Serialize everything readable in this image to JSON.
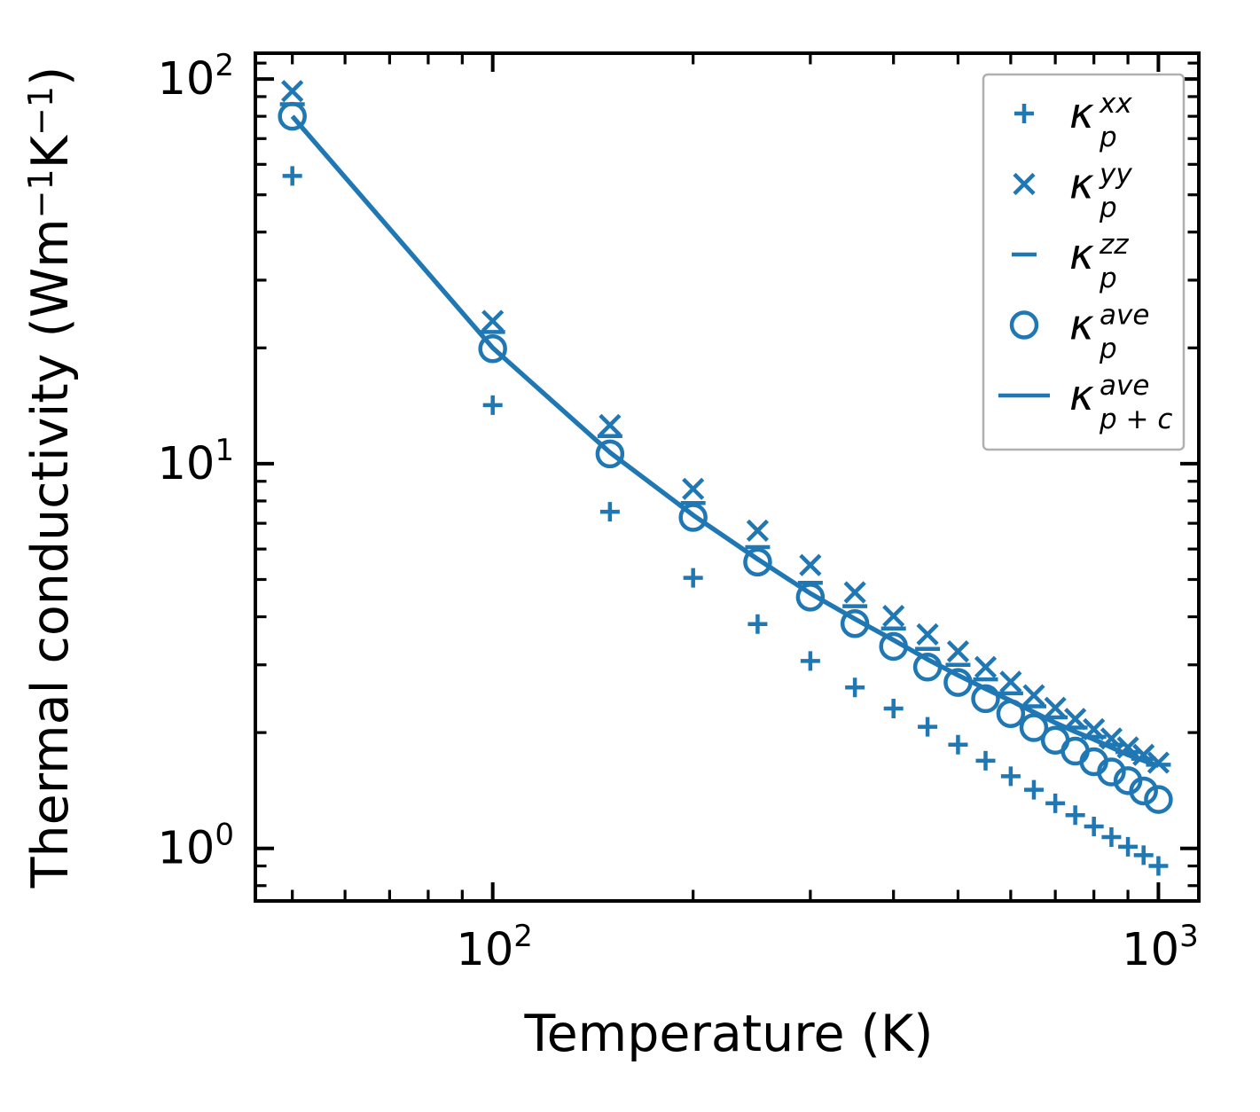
{
  "figure": {
    "xlabel": "Temperature (K)",
    "ylabel_parts": [
      {
        "t": "Thermal conductivity (Wm"
      },
      {
        "t": "−1",
        "sup": true
      },
      {
        "t": "K"
      },
      {
        "t": "−1",
        "sup": true
      },
      {
        "t": ")"
      }
    ],
    "colors": {
      "series": "#1f77b4",
      "axis": "#000000",
      "legend_border": "#b0b0b0",
      "background": "#ffffff"
    }
  },
  "axes": {
    "x": {
      "scale": "log",
      "range": [
        44,
        1150
      ],
      "major": [
        {
          "value": 100,
          "base": "10",
          "exp": "2"
        },
        {
          "value": 1000,
          "base": "10",
          "exp": "3"
        }
      ],
      "minor": [
        50,
        60,
        70,
        80,
        90,
        200,
        300,
        400,
        500,
        600,
        700,
        800,
        900
      ]
    },
    "y": {
      "scale": "log",
      "range": [
        0.73,
        116.7
      ],
      "major": [
        {
          "value": 1,
          "base": "10",
          "exp": "0"
        },
        {
          "value": 10,
          "base": "10",
          "exp": "1"
        },
        {
          "value": 100,
          "base": "10",
          "exp": "2"
        }
      ],
      "minor": [
        0.8,
        0.9,
        2,
        3,
        4,
        5,
        6,
        7,
        8,
        9,
        20,
        30,
        40,
        50,
        60,
        70,
        80,
        90,
        110
      ]
    }
  },
  "chart_data": {
    "type": "scatter",
    "xlabel": "Temperature (K)",
    "ylabel": "Thermal conductivity (Wm-1K-1)",
    "x": [
      50,
      100,
      150,
      200,
      250,
      300,
      350,
      400,
      450,
      500,
      550,
      600,
      650,
      700,
      750,
      800,
      850,
      900,
      950,
      1000
    ],
    "xlim": [
      44,
      1150
    ],
    "ylim": [
      0.73,
      116.7
    ],
    "grid": false,
    "legend_position": "upper right",
    "series": [
      {
        "name": "kappa_p_xx",
        "marker": "plus",
        "values": [
          56,
          14.2,
          7.5,
          5.05,
          3.83,
          3.07,
          2.62,
          2.31,
          2.07,
          1.86,
          1.69,
          1.54,
          1.42,
          1.31,
          1.22,
          1.14,
          1.07,
          1.01,
          0.96,
          0.9
        ]
      },
      {
        "name": "kappa_p_yy",
        "marker": "x",
        "values": [
          93,
          23.5,
          12.6,
          8.6,
          6.7,
          5.45,
          4.63,
          4.02,
          3.6,
          3.25,
          2.96,
          2.71,
          2.5,
          2.32,
          2.17,
          2.04,
          1.93,
          1.83,
          1.75,
          1.67
        ]
      },
      {
        "name": "kappa_p_zz",
        "marker": "hline",
        "values": [
          86,
          22.0,
          11.8,
          7.9,
          6.07,
          4.9,
          4.26,
          3.73,
          3.3,
          3.0,
          2.75,
          2.53,
          2.34,
          2.19,
          2.06,
          1.95,
          1.86,
          1.78,
          1.71,
          1.65
        ]
      },
      {
        "name": "kappa_p_ave",
        "marker": "circle",
        "values": [
          80,
          19.9,
          10.6,
          7.25,
          5.55,
          4.5,
          3.84,
          3.35,
          2.96,
          2.7,
          2.45,
          2.24,
          2.06,
          1.91,
          1.79,
          1.68,
          1.58,
          1.5,
          1.41,
          1.34
        ]
      },
      {
        "name": "kappa_p_plus_c_ave",
        "marker": "line",
        "values": [
          80,
          20.0,
          10.7,
          7.35,
          5.65,
          4.6,
          3.95,
          3.48,
          3.1,
          2.82,
          2.6,
          2.42,
          2.26,
          2.12,
          2.01,
          1.92,
          1.83,
          1.75,
          1.69,
          1.64
        ]
      }
    ]
  },
  "legend": {
    "entries": [
      {
        "marker": "plus",
        "base": "κ",
        "sup": "xx",
        "sub": "p"
      },
      {
        "marker": "x",
        "base": "κ",
        "sup": "yy",
        "sub": "p"
      },
      {
        "marker": "hline",
        "base": "κ",
        "sup": "zz",
        "sub": "p"
      },
      {
        "marker": "circle",
        "base": "κ",
        "sup": "ave",
        "sub": "p"
      },
      {
        "marker": "line",
        "base": "κ",
        "sup": "ave",
        "sub": "p + c"
      }
    ]
  }
}
